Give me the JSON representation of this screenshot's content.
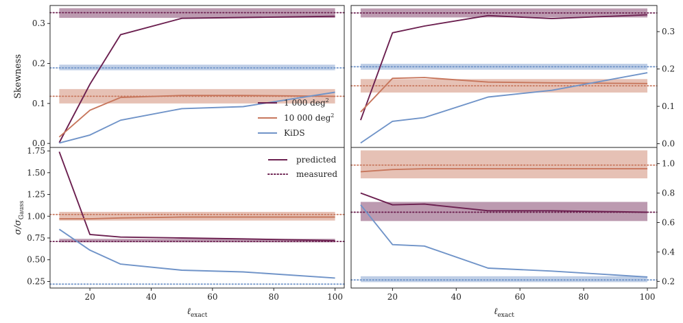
{
  "colors": {
    "purple": "#6b1f4f",
    "orange": "#c7765c",
    "blue": "#6f93c8"
  },
  "chart_data": [
    {
      "type": "line",
      "panel": "top-left",
      "ylabel": "Skewness",
      "xlim": [
        7,
        103
      ],
      "ylim": [
        -0.01,
        0.345
      ],
      "yticks": [
        0.0,
        0.1,
        0.2,
        0.3
      ],
      "ytick_labels": [
        "0.0",
        "0.1",
        "0.2",
        "0.3"
      ],
      "yaxis_side": "left",
      "series": [
        {
          "name": "1 000 deg²",
          "color": "purple",
          "x": [
            10,
            20,
            30,
            50,
            70,
            100
          ],
          "values": [
            0.002,
            0.148,
            0.272,
            0.313,
            0.315,
            0.318
          ]
        },
        {
          "name": "10 000 deg²",
          "color": "orange",
          "x": [
            10,
            20,
            30,
            50,
            70,
            100
          ],
          "values": [
            0.016,
            0.083,
            0.115,
            0.12,
            0.12,
            0.118
          ]
        },
        {
          "name": "KiDS",
          "color": "blue",
          "x": [
            10,
            20,
            30,
            50,
            70,
            100
          ],
          "values": [
            0.001,
            0.021,
            0.058,
            0.087,
            0.092,
            0.128
          ]
        }
      ],
      "bands": [
        {
          "color": "purple",
          "low": 0.314,
          "high": 0.338,
          "x_range": [
            10,
            100
          ]
        },
        {
          "color": "blue",
          "low": 0.183,
          "high": 0.197,
          "x_range": [
            10,
            100
          ]
        },
        {
          "color": "orange",
          "low": 0.1,
          "high": 0.136,
          "x_range": [
            10,
            100
          ]
        }
      ],
      "measured": [
        {
          "color": "purple",
          "value": 0.327
        },
        {
          "color": "blue",
          "value": 0.189
        },
        {
          "color": "orange",
          "value": 0.118
        }
      ]
    },
    {
      "type": "line",
      "panel": "top-right",
      "xlim": [
        7,
        103
      ],
      "ylim": [
        -0.01,
        0.37
      ],
      "yticks": [
        0.0,
        0.1,
        0.2,
        0.3
      ],
      "ytick_labels": [
        "0.0",
        "0.1",
        "0.2",
        "0.3"
      ],
      "yaxis_side": "right",
      "series": [
        {
          "name": "1 000 deg²",
          "color": "purple",
          "x": [
            10,
            20,
            30,
            50,
            70,
            100
          ],
          "values": [
            0.063,
            0.297,
            0.315,
            0.343,
            0.335,
            0.345
          ]
        },
        {
          "name": "10 000 deg²",
          "color": "orange",
          "x": [
            10,
            20,
            30,
            50,
            70,
            100
          ],
          "values": [
            0.085,
            0.175,
            0.177,
            0.165,
            0.163,
            0.161
          ]
        },
        {
          "name": "KiDS",
          "color": "blue",
          "x": [
            10,
            20,
            30,
            50,
            70,
            100
          ],
          "values": [
            0.002,
            0.06,
            0.07,
            0.125,
            0.143,
            0.19
          ]
        }
      ],
      "bands": [
        {
          "color": "purple",
          "low": 0.338,
          "high": 0.362,
          "x_range": [
            10,
            100
          ]
        },
        {
          "color": "blue",
          "low": 0.198,
          "high": 0.214,
          "x_range": [
            10,
            100
          ]
        },
        {
          "color": "orange",
          "low": 0.137,
          "high": 0.173,
          "x_range": [
            10,
            100
          ]
        }
      ],
      "measured": [
        {
          "color": "purple",
          "value": 0.35
        },
        {
          "color": "blue",
          "value": 0.206
        },
        {
          "color": "orange",
          "value": 0.155
        }
      ]
    },
    {
      "type": "line",
      "panel": "bottom-left",
      "ylabel": "σ/σGauss",
      "xlabel": "ℓexact",
      "xlim": [
        7,
        103
      ],
      "ylim": [
        0.175,
        1.79
      ],
      "yticks": [
        0.25,
        0.5,
        0.75,
        1.0,
        1.25,
        1.5,
        1.75
      ],
      "ytick_labels": [
        "0.25",
        "0.50",
        "0.75",
        "1.00",
        "1.25",
        "1.50",
        "1.75"
      ],
      "xticks": [
        20,
        40,
        60,
        80,
        100
      ],
      "xtick_labels": [
        "20",
        "40",
        "60",
        "80",
        "100"
      ],
      "yaxis_side": "left",
      "series": [
        {
          "name": "1 000 deg²",
          "color": "purple",
          "x": [
            10,
            20,
            30,
            50,
            70,
            100
          ],
          "values": [
            1.74,
            0.79,
            0.76,
            0.75,
            0.74,
            0.72
          ]
        },
        {
          "name": "10 000 deg²",
          "color": "orange",
          "x": [
            10,
            20,
            30,
            50,
            70,
            100
          ],
          "values": [
            0.97,
            0.97,
            0.98,
            0.99,
            0.99,
            0.99
          ]
        },
        {
          "name": "KiDS",
          "color": "blue",
          "x": [
            10,
            20,
            30,
            50,
            70,
            100
          ],
          "values": [
            0.85,
            0.61,
            0.45,
            0.38,
            0.36,
            0.29
          ]
        }
      ],
      "bands": [
        {
          "color": "orange",
          "low": 0.95,
          "high": 1.05,
          "x_range": [
            10,
            100
          ]
        },
        {
          "color": "purple",
          "low": 0.7,
          "high": 0.74,
          "x_range": [
            10,
            100
          ]
        }
      ],
      "measured": [
        {
          "color": "orange",
          "value": 1.02
        },
        {
          "color": "purple",
          "value": 0.71
        },
        {
          "color": "blue",
          "value": 0.22
        }
      ]
    },
    {
      "type": "line",
      "panel": "bottom-right",
      "xlabel": "ℓexact",
      "xlim": [
        7,
        103
      ],
      "ylim": [
        0.155,
        1.11
      ],
      "yticks": [
        0.2,
        0.4,
        0.6,
        0.8,
        1.0
      ],
      "ytick_labels": [
        "0.2",
        "0.4",
        "0.6",
        "0.8",
        "1.0"
      ],
      "xticks": [
        20,
        40,
        60,
        80,
        100
      ],
      "xtick_labels": [
        "20",
        "40",
        "60",
        "80",
        "100"
      ],
      "yaxis_side": "right",
      "series": [
        {
          "name": "1 000 deg²",
          "color": "purple",
          "x": [
            10,
            20,
            30,
            50,
            70,
            100
          ],
          "values": [
            0.8,
            0.72,
            0.725,
            0.68,
            0.68,
            0.67
          ]
        },
        {
          "name": "10 000 deg²",
          "color": "orange",
          "x": [
            10,
            20,
            30,
            50,
            70,
            100
          ],
          "values": [
            0.945,
            0.96,
            0.965,
            0.965,
            0.965,
            0.965
          ]
        },
        {
          "name": "KiDS",
          "color": "blue",
          "x": [
            10,
            20,
            30,
            50,
            70,
            100
          ],
          "values": [
            0.72,
            0.45,
            0.44,
            0.29,
            0.27,
            0.23
          ]
        }
      ],
      "bands": [
        {
          "color": "orange",
          "low": 0.9,
          "high": 1.09,
          "x_range": [
            10,
            100
          ]
        },
        {
          "color": "purple",
          "low": 0.61,
          "high": 0.74,
          "x_range": [
            10,
            100
          ]
        },
        {
          "color": "blue",
          "low": 0.195,
          "high": 0.235,
          "x_range": [
            10,
            100
          ]
        }
      ],
      "measured": [
        {
          "color": "orange",
          "value": 0.99
        },
        {
          "color": "purple",
          "value": 0.67
        },
        {
          "color": "blue",
          "value": 0.21
        }
      ]
    }
  ],
  "legend_surveys": {
    "items": [
      {
        "label": "1 000 deg",
        "sup": "2",
        "color": "purple"
      },
      {
        "label": "10 000 deg",
        "sup": "2",
        "color": "orange"
      },
      {
        "label": "KiDS",
        "sup": "",
        "color": "blue"
      }
    ]
  },
  "legend_lines": {
    "items": [
      {
        "label": "predicted",
        "style": "solid",
        "color": "purple"
      },
      {
        "label": "measured",
        "style": "dotted",
        "color": "purple"
      }
    ]
  }
}
